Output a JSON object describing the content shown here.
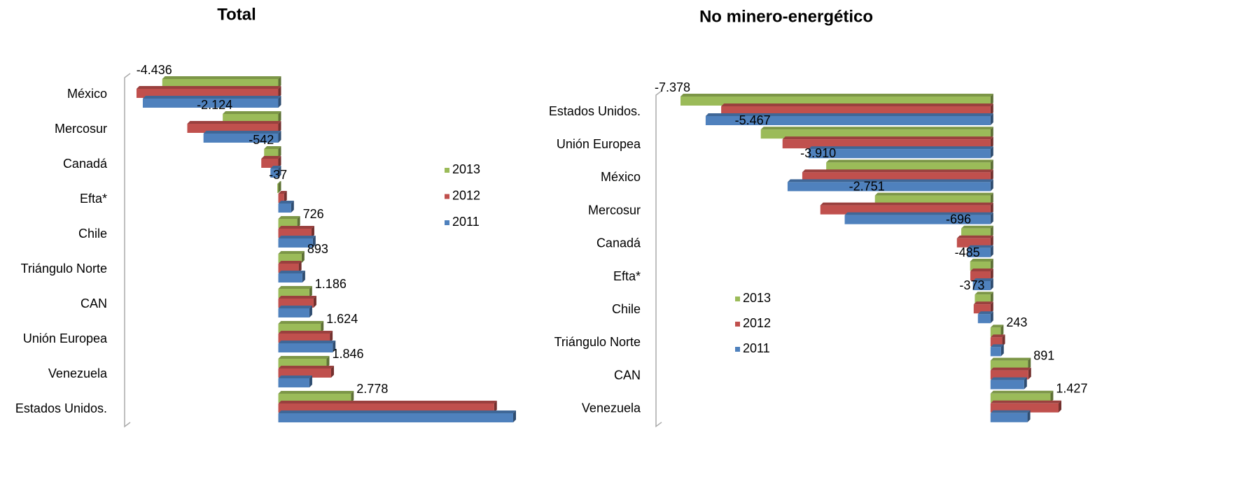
{
  "chart_data": [
    {
      "type": "bar",
      "orientation": "horizontal",
      "title": "Total",
      "categories": [
        "México",
        "Mercosur",
        "Canadá",
        "Efta*",
        "Chile",
        "Triángulo Norte",
        "CAN",
        "Unión Europea",
        "Venezuela",
        "Estados Unidos."
      ],
      "series": [
        {
          "name": "2013",
          "color": "#9bbb59",
          "values": [
            -4436,
            -2124,
            -542,
            -37,
            726,
            893,
            1186,
            1624,
            1846,
            2778
          ],
          "value_labels": [
            "-4.436",
            "-2.124",
            "-542",
            "-37",
            "726",
            "893",
            "1.186",
            "1.624",
            "1.846",
            "2.778"
          ]
        },
        {
          "name": "2012",
          "color": "#c0504d",
          "values": [
            -5420,
            -3480,
            -650,
            220,
            1270,
            780,
            1350,
            1970,
            2020,
            8250
          ]
        },
        {
          "name": "2011",
          "color": "#4f81bd",
          "values": [
            -5180,
            -2860,
            -300,
            490,
            1320,
            920,
            1190,
            2080,
            1190,
            8980
          ]
        }
      ]
    },
    {
      "type": "bar",
      "orientation": "horizontal",
      "title": "No minero-energético",
      "categories": [
        "Estados Unidos.",
        "Unión Europea",
        "México",
        "Mercosur",
        "Canadá",
        "Efta*",
        "Chile",
        "Triángulo Norte",
        "CAN",
        "Venezuela"
      ],
      "series": [
        {
          "name": "2013",
          "color": "#9bbb59",
          "values": [
            -7378,
            -5467,
            -3910,
            -2751,
            -696,
            -485,
            -373,
            243,
            891,
            1427
          ],
          "value_labels": [
            "-7.378",
            "-5.467",
            "-3.910",
            "-2.751",
            "-696",
            "-485",
            "-373",
            "243",
            "891",
            "1.427"
          ]
        },
        {
          "name": "2012",
          "color": "#c0504d",
          "values": [
            -6410,
            -4950,
            -4480,
            -4050,
            -800,
            -480,
            -400,
            280,
            900,
            1620
          ]
        },
        {
          "name": "2011",
          "color": "#4f81bd",
          "values": [
            -6780,
            -4330,
            -4830,
            -3470,
            -550,
            -420,
            -300,
            250,
            800,
            880
          ]
        }
      ]
    }
  ]
}
